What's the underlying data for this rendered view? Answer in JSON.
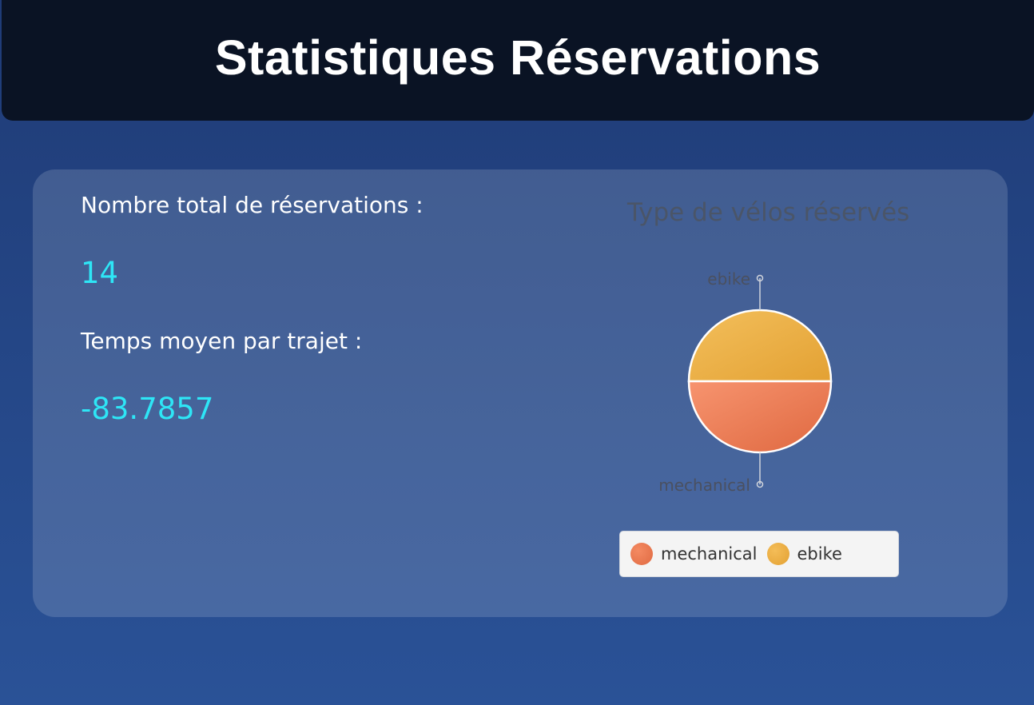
{
  "header": {
    "title": "Statistiques Réservations"
  },
  "stats": {
    "total_label": "Nombre total de réservations :",
    "total_value": "14",
    "avg_label": "Temps moyen par trajet :",
    "avg_value": "-83.7857"
  },
  "colors": {
    "mechanical": "#e8714a",
    "ebike": "#e9a93c",
    "value": "#2ee6f6"
  },
  "chart_data": {
    "type": "pie",
    "title": "Type de vélos réservés",
    "categories": [
      "ebike",
      "mechanical"
    ],
    "values": [
      50,
      50
    ],
    "legend": [
      "mechanical",
      "ebike"
    ],
    "legend_position": "bottom"
  }
}
